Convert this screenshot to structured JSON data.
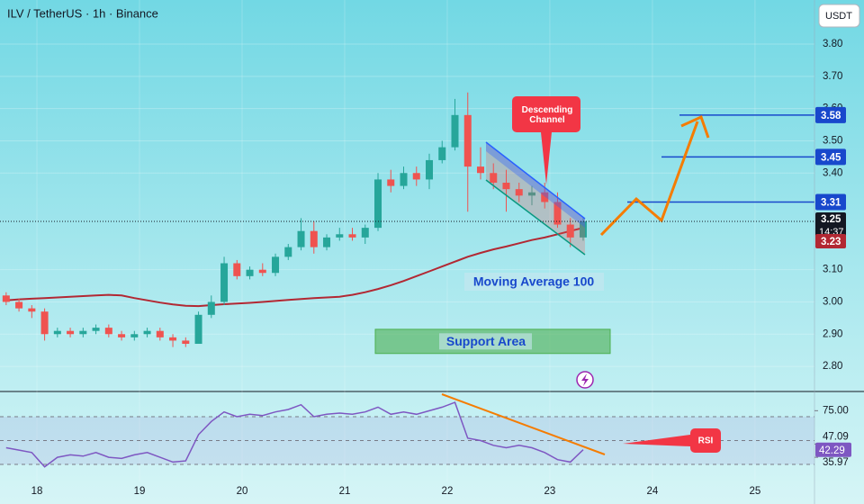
{
  "chart_data": [
    {
      "type": "candlestick",
      "title": "ILV / TetherUS · 1h · Binance",
      "unit": "USDT",
      "x": [
        17.7,
        17.825,
        17.95,
        18.075,
        18.2,
        18.325,
        18.45,
        18.575,
        18.7,
        18.825,
        18.95,
        19.075,
        19.2,
        19.325,
        19.45,
        19.575,
        19.7,
        19.825,
        19.95,
        20.075,
        20.2,
        20.325,
        20.45,
        20.575,
        20.7,
        20.825,
        20.95,
        21.075,
        21.2,
        21.325,
        21.45,
        21.575,
        21.7,
        21.825,
        21.95,
        22.075,
        22.2,
        22.325,
        22.45,
        22.575,
        22.7,
        22.825,
        22.95,
        23.075,
        23.2,
        23.325
      ],
      "open": [
        3.02,
        3.0,
        2.98,
        2.97,
        2.9,
        2.91,
        2.9,
        2.91,
        2.92,
        2.9,
        2.89,
        2.9,
        2.91,
        2.89,
        2.88,
        2.87,
        2.96,
        3.0,
        3.12,
        3.08,
        3.1,
        3.09,
        3.14,
        3.17,
        3.22,
        3.17,
        3.2,
        3.21,
        3.2,
        3.23,
        3.38,
        3.36,
        3.4,
        3.38,
        3.44,
        3.48,
        3.58,
        3.42,
        3.4,
        3.37,
        3.35,
        3.33,
        3.34,
        3.31,
        3.24,
        3.2
      ],
      "high": [
        3.03,
        3.01,
        2.99,
        2.98,
        2.92,
        2.92,
        2.92,
        2.93,
        2.93,
        2.91,
        2.91,
        2.92,
        2.92,
        2.9,
        2.89,
        2.97,
        3.02,
        3.14,
        3.13,
        3.11,
        3.12,
        3.15,
        3.18,
        3.26,
        3.25,
        3.21,
        3.23,
        3.23,
        3.24,
        3.4,
        3.41,
        3.42,
        3.42,
        3.46,
        3.5,
        3.63,
        3.65,
        3.48,
        3.43,
        3.41,
        3.37,
        3.36,
        3.37,
        3.34,
        3.26,
        3.26
      ],
      "low": [
        2.99,
        2.97,
        2.95,
        2.88,
        2.89,
        2.89,
        2.89,
        2.9,
        2.89,
        2.88,
        2.88,
        2.89,
        2.88,
        2.86,
        2.86,
        2.87,
        2.95,
        2.99,
        3.07,
        3.07,
        3.08,
        3.08,
        3.13,
        3.16,
        3.15,
        3.16,
        3.19,
        3.19,
        3.18,
        3.22,
        3.34,
        3.35,
        3.36,
        3.35,
        3.43,
        3.47,
        3.28,
        3.38,
        3.35,
        3.28,
        3.31,
        3.3,
        3.29,
        3.23,
        3.17,
        3.19
      ],
      "close": [
        3.0,
        2.98,
        2.97,
        2.9,
        2.91,
        2.9,
        2.91,
        2.92,
        2.9,
        2.89,
        2.9,
        2.91,
        2.89,
        2.88,
        2.87,
        2.96,
        3.0,
        3.12,
        3.08,
        3.1,
        3.09,
        3.14,
        3.17,
        3.22,
        3.17,
        3.2,
        3.21,
        3.2,
        3.23,
        3.38,
        3.36,
        3.4,
        3.38,
        3.44,
        3.48,
        3.58,
        3.42,
        3.4,
        3.37,
        3.35,
        3.33,
        3.34,
        3.31,
        3.24,
        3.2,
        3.25
      ],
      "up_color": "#26a69a",
      "down_color": "#ef5350",
      "series": [
        {
          "name": "Moving Average 100",
          "color": "#b22833",
          "values": [
            3.005,
            3.008,
            3.01,
            3.012,
            3.014,
            3.016,
            3.018,
            3.02,
            3.022,
            3.02,
            3.012,
            3.005,
            2.998,
            2.992,
            2.988,
            2.987,
            2.99,
            2.993,
            2.995,
            2.997,
            3.0,
            3.003,
            3.006,
            3.009,
            3.012,
            3.014,
            3.016,
            3.022,
            3.03,
            3.04,
            3.052,
            3.065,
            3.08,
            3.095,
            3.11,
            3.125,
            3.14,
            3.152,
            3.163,
            3.172,
            3.182,
            3.192,
            3.2,
            3.21,
            3.22,
            3.23
          ]
        }
      ],
      "xlim": [
        17.64,
        25.58
      ],
      "xticks": [
        18,
        19,
        20,
        21,
        22,
        23,
        24,
        25
      ],
      "ylim": [
        2.722,
        3.937
      ],
      "yticks": [
        {
          "value": 3.8,
          "label": "3.80"
        },
        {
          "value": 3.7,
          "label": "3.70"
        },
        {
          "value": 3.6,
          "label": "3.60"
        },
        {
          "value": 3.5,
          "label": "3.50"
        },
        {
          "value": 3.4,
          "label": "3.40"
        },
        {
          "value": 3.1,
          "label": "3.10"
        },
        {
          "value": 3,
          "label": "3.00"
        },
        {
          "value": 2.9,
          "label": "2.90"
        },
        {
          "value": 2.8,
          "label": "2.80"
        }
      ],
      "levels": [
        3.58,
        3.45,
        3.31
      ],
      "last_price": 3.25,
      "countdown": "14:37",
      "ma_last": 3.23,
      "support_area": {
        "label": "Support Area",
        "range": [
          2.84,
          2.915
        ]
      },
      "annotation": "Descending Channel"
    },
    {
      "type": "line",
      "series": [
        {
          "name": "RSI",
          "color": "#7e57c2",
          "values": [
            44,
            42,
            40,
            28,
            36,
            38,
            37,
            40,
            36,
            35,
            38,
            40,
            36,
            32,
            33,
            55,
            66,
            74,
            70,
            72,
            71,
            74,
            76,
            80,
            70,
            72,
            73,
            72,
            74,
            78,
            72,
            74,
            72,
            75,
            78,
            82,
            52,
            50,
            46,
            44,
            46,
            44,
            40,
            34,
            32,
            42.29
          ]
        }
      ],
      "ylim": [
        15.7,
        91.1
      ],
      "yticks": [
        {
          "value": 75,
          "label": "75.00"
        },
        47.09,
        35.97
      ],
      "levels": [
        70,
        50,
        30
      ]
    }
  ]
}
